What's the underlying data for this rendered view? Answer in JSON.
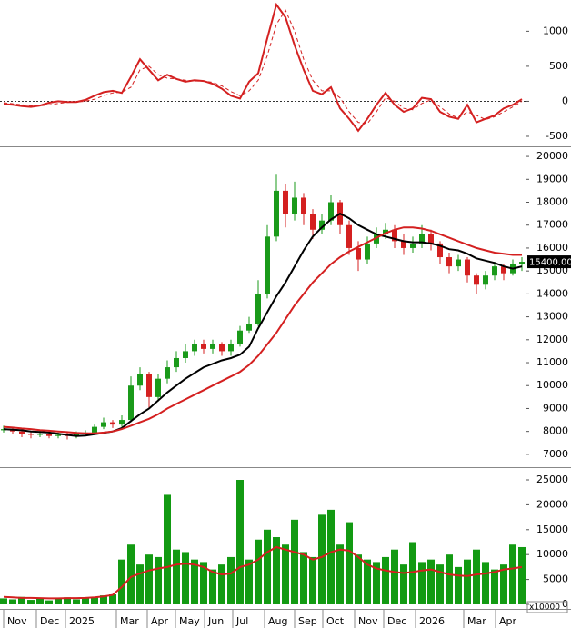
{
  "chart_data": [
    {
      "type": "line",
      "x": [
        0,
        1,
        2,
        3,
        4,
        5,
        6,
        7,
        8,
        9,
        10,
        11,
        12,
        13,
        14,
        15,
        16,
        17,
        18,
        19,
        20,
        21,
        22,
        23,
        24,
        25,
        26,
        27,
        28,
        29,
        30,
        31,
        32,
        33,
        34,
        35,
        36,
        37,
        38,
        39,
        40,
        41,
        42,
        43,
        44,
        45,
        46,
        47,
        48,
        49,
        50,
        51,
        52,
        53,
        54,
        55,
        56,
        57
      ],
      "xlim": [
        -0.4,
        57.4
      ],
      "ylim": [
        -630,
        1420
      ],
      "yticks": [
        1000,
        500,
        0,
        -500
      ],
      "zero_line": true,
      "series": [
        {
          "color": "#d42020",
          "values": [
            -40,
            -50,
            -70,
            -80,
            -60,
            -20,
            0,
            -10,
            -10,
            20,
            80,
            130,
            150,
            120,
            350,
            600,
            450,
            300,
            380,
            320,
            280,
            300,
            290,
            250,
            180,
            80,
            40,
            280,
            400,
            900,
            1380,
            1200,
            800,
            450,
            150,
            100,
            200,
            -100,
            -250,
            -420,
            -250,
            -50,
            120,
            -50,
            -150,
            -100,
            50,
            30,
            -150,
            -220,
            -250,
            -50,
            -300,
            -250,
            -200,
            -100,
            -50,
            30
          ]
        },
        {
          "color": "#d42020",
          "dash": true,
          "values": [
            -20,
            -35,
            -50,
            -60,
            -65,
            -50,
            -30,
            -15,
            -10,
            0,
            30,
            80,
            120,
            130,
            200,
            450,
            500,
            380,
            330,
            320,
            300,
            290,
            290,
            270,
            220,
            140,
            80,
            150,
            300,
            650,
            1100,
            1300,
            1000,
            600,
            300,
            150,
            150,
            50,
            -150,
            -300,
            -320,
            -150,
            50,
            0,
            -100,
            -120,
            -30,
            20,
            -80,
            -180,
            -240,
            -150,
            -200,
            -260,
            -220,
            -150,
            -80,
            0
          ]
        }
      ]
    },
    {
      "type": "candlestick",
      "x": [
        0,
        1,
        2,
        3,
        4,
        5,
        6,
        7,
        8,
        9,
        10,
        11,
        12,
        13,
        14,
        15,
        16,
        17,
        18,
        19,
        20,
        21,
        22,
        23,
        24,
        25,
        26,
        27,
        28,
        29,
        30,
        31,
        32,
        33,
        34,
        35,
        36,
        37,
        38,
        39,
        40,
        41,
        42,
        43,
        44,
        45,
        46,
        47,
        48,
        49,
        50,
        51,
        52,
        53,
        54,
        55,
        56,
        57
      ],
      "xlim": [
        -0.4,
        57.4
      ],
      "ylim": [
        6480,
        20360
      ],
      "yticks": [
        20000,
        19000,
        18000,
        17000,
        16000,
        15000,
        14000,
        13000,
        12000,
        11000,
        10000,
        9000,
        8000,
        7000
      ],
      "up_color": "#1a9a1a",
      "down_color": "#d42020",
      "open": [
        8050,
        8100,
        8000,
        7900,
        7850,
        7900,
        7800,
        7850,
        7800,
        7900,
        7950,
        8200,
        8400,
        8300,
        8500,
        10000,
        10500,
        9500,
        10300,
        10800,
        11200,
        11500,
        11800,
        11600,
        11800,
        11500,
        11800,
        12400,
        12700,
        14000,
        16500,
        18500,
        17500,
        18200,
        17500,
        16800,
        17200,
        18000,
        17000,
        16000,
        15500,
        16200,
        16600,
        16800,
        16300,
        16000,
        16200,
        16600,
        16200,
        15600,
        15200,
        15500,
        14800,
        14400,
        14800,
        15200,
        14900,
        15300
      ],
      "high": [
        8250,
        8200,
        8100,
        8000,
        8050,
        8000,
        7950,
        7950,
        8000,
        8050,
        8300,
        8600,
        8500,
        8700,
        10400,
        10800,
        10600,
        10500,
        11100,
        11500,
        11800,
        12000,
        12000,
        12000,
        11900,
        12000,
        12600,
        13000,
        14600,
        17000,
        19200,
        18800,
        18900,
        18400,
        17700,
        17500,
        18300,
        18100,
        17200,
        16300,
        16500,
        16900,
        17100,
        17000,
        16600,
        16500,
        17000,
        16800,
        16300,
        15800,
        15700,
        15600,
        14900,
        15000,
        15400,
        15300,
        15500,
        15600
      ],
      "low": [
        7950,
        7900,
        7750,
        7700,
        7750,
        7700,
        7700,
        7650,
        7700,
        7800,
        7900,
        8100,
        8150,
        8200,
        8400,
        9800,
        9000,
        9300,
        10100,
        10600,
        11000,
        11300,
        11400,
        11400,
        11300,
        11300,
        11700,
        12300,
        12600,
        13800,
        16300,
        16900,
        17200,
        17000,
        16400,
        16600,
        17000,
        16600,
        15700,
        15000,
        15300,
        16000,
        16400,
        16000,
        15700,
        15800,
        16000,
        15900,
        15300,
        14900,
        15000,
        14500,
        14000,
        14200,
        14600,
        14600,
        14800,
        15000
      ],
      "close": [
        8100,
        8000,
        7900,
        7850,
        7900,
        7800,
        7850,
        7800,
        7900,
        7950,
        8200,
        8400,
        8300,
        8500,
        10000,
        10500,
        9500,
        10300,
        10800,
        11200,
        11500,
        11800,
        11600,
        11800,
        11500,
        11800,
        12400,
        12700,
        14000,
        16500,
        18500,
        17500,
        18200,
        17500,
        16800,
        17200,
        18000,
        17000,
        16000,
        15500,
        16200,
        16600,
        16800,
        16300,
        16000,
        16200,
        16600,
        16200,
        15600,
        15200,
        15500,
        14800,
        14400,
        14800,
        15200,
        14900,
        15300,
        15400
      ],
      "series": [
        {
          "color": "#000000",
          "values": [
            8100,
            8080,
            8050,
            8000,
            7980,
            7950,
            7900,
            7850,
            7800,
            7820,
            7880,
            7940,
            8000,
            8150,
            8450,
            8750,
            9000,
            9350,
            9700,
            10000,
            10300,
            10550,
            10800,
            10950,
            11100,
            11200,
            11350,
            11700,
            12500,
            13200,
            13900,
            14500,
            15200,
            15900,
            16500,
            16900,
            17250,
            17500,
            17300,
            17000,
            16800,
            16600,
            16500,
            16400,
            16300,
            16250,
            16250,
            16200,
            16100,
            15950,
            15900,
            15750,
            15550,
            15450,
            15350,
            15200,
            15100,
            15200
          ]
        },
        {
          "color": "#d42020",
          "values": [
            8200,
            8170,
            8130,
            8100,
            8060,
            8030,
            8000,
            7970,
            7940,
            7920,
            7920,
            7950,
            8000,
            8100,
            8250,
            8400,
            8550,
            8750,
            9000,
            9200,
            9400,
            9600,
            9800,
            10000,
            10200,
            10400,
            10600,
            10900,
            11300,
            11800,
            12300,
            12900,
            13500,
            14000,
            14500,
            14900,
            15300,
            15600,
            15850,
            16050,
            16250,
            16450,
            16650,
            16800,
            16900,
            16900,
            16850,
            16750,
            16600,
            16450,
            16300,
            16150,
            16000,
            15900,
            15800,
            15750,
            15700,
            15700
          ]
        }
      ],
      "last_price": 15400,
      "last_price_label": "15400.00"
    },
    {
      "type": "bar",
      "x": [
        0,
        1,
        2,
        3,
        4,
        5,
        6,
        7,
        8,
        9,
        10,
        11,
        12,
        13,
        14,
        15,
        16,
        17,
        18,
        19,
        20,
        21,
        22,
        23,
        24,
        25,
        26,
        27,
        28,
        29,
        30,
        31,
        32,
        33,
        34,
        35,
        36,
        37,
        38,
        39,
        40,
        41,
        42,
        43,
        44,
        45,
        46,
        47,
        48,
        49,
        50,
        51,
        52,
        53,
        54,
        55,
        56,
        57
      ],
      "xlim": [
        -0.4,
        57.4
      ],
      "ylim": [
        -550,
        27190
      ],
      "yticks": [
        25000,
        20000,
        15000,
        10000,
        5000,
        0
      ],
      "color": "#129a12",
      "unit_label": "x10000",
      "values": [
        1200,
        1000,
        1500,
        900,
        1300,
        800,
        1100,
        1400,
        1000,
        1200,
        1500,
        1800,
        2000,
        9000,
        12000,
        8000,
        10000,
        9500,
        22000,
        11000,
        10500,
        9000,
        8500,
        7000,
        8000,
        9500,
        25000,
        9000,
        13000,
        15000,
        13500,
        12000,
        17000,
        10500,
        9500,
        18000,
        19000,
        12000,
        16500,
        10000,
        9000,
        8500,
        9500,
        11000,
        8000,
        12500,
        8500,
        9000,
        8000,
        10000,
        7500,
        9000,
        11000,
        8500,
        7000,
        8000,
        12000,
        11500
      ],
      "series": [
        {
          "color": "#d42020",
          "values": [
            1500,
            1400,
            1300,
            1300,
            1250,
            1200,
            1200,
            1250,
            1250,
            1300,
            1400,
            1600,
            1900,
            3500,
            5500,
            6200,
            6800,
            7200,
            7500,
            8000,
            8200,
            8000,
            7500,
            6500,
            6000,
            6200,
            7500,
            8000,
            9000,
            10500,
            11500,
            11000,
            10500,
            10000,
            9000,
            9500,
            10500,
            11000,
            10800,
            9500,
            8000,
            7200,
            6800,
            6500,
            6300,
            6500,
            6800,
            7000,
            6500,
            6000,
            5800,
            5700,
            6000,
            6200,
            6500,
            7000,
            7200,
            7500
          ]
        }
      ],
      "xticks": [
        {
          "value": 0,
          "label": "Nov"
        },
        {
          "value": 3.6,
          "label": "Dec"
        },
        {
          "value": 6.8,
          "label": "2025"
        },
        {
          "value": 12.4,
          "label": "Mar"
        },
        {
          "value": 15.8,
          "label": "Apr"
        },
        {
          "value": 18.9,
          "label": "May"
        },
        {
          "value": 22.1,
          "label": "Jun"
        },
        {
          "value": 25.2,
          "label": "Jul"
        },
        {
          "value": 28.7,
          "label": "Aug"
        },
        {
          "value": 32,
          "label": "Sep"
        },
        {
          "value": 35.1,
          "label": "Oct"
        },
        {
          "value": 38.6,
          "label": "Nov"
        },
        {
          "value": 41.8,
          "label": "Dec"
        },
        {
          "value": 45.3,
          "label": "2026"
        },
        {
          "value": 50.6,
          "label": "Mar"
        },
        {
          "value": 54.1,
          "label": "Apr"
        }
      ]
    }
  ]
}
